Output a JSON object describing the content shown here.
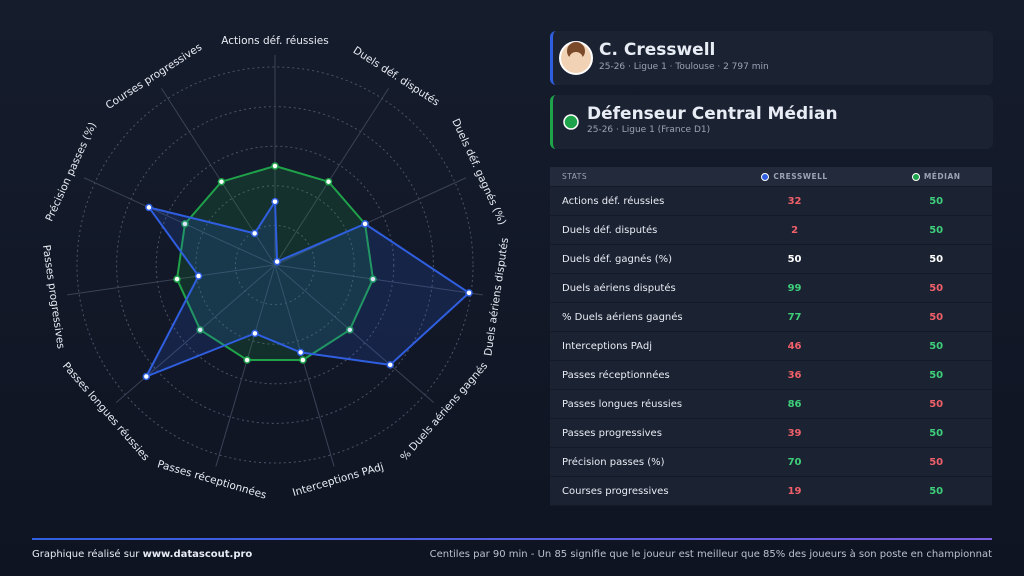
{
  "chart_data": {
    "type": "radar",
    "categories": [
      "Actions déf. réussies",
      "Duels déf. disputés",
      "Duels déf. gagnés (%)",
      "Duels aériens disputés",
      "% Duels aériens gagnés",
      "Interceptions PAdj",
      "Passes réceptionnées",
      "Passes longues réussies",
      "Passes progressives",
      "Précision passes (%)",
      "Courses progressives"
    ],
    "series": [
      {
        "name": "Cresswell",
        "color": "#2f5fe0",
        "values": [
          32,
          2,
          50,
          99,
          77,
          46,
          36,
          86,
          39,
          70,
          19
        ]
      },
      {
        "name": "Médian",
        "color": "#1fa34a",
        "values": [
          50,
          50,
          50,
          50,
          50,
          50,
          50,
          50,
          50,
          50,
          50
        ]
      }
    ],
    "rlim": [
      0,
      100
    ]
  },
  "player": {
    "name": "C. Cresswell",
    "details": "25-26 · Ligue 1 · Toulouse · 2 797 min"
  },
  "role": {
    "name": "Défenseur Central Médian",
    "details": "25-26 · Ligue 1 (France D1)"
  },
  "table": {
    "header": "STATS"
  },
  "footer": {
    "left": "Graphique réalisé sur ",
    "link": "www.datascout.pro",
    "right": "Centiles par 90 min - Un 85 signifie que le joueur est meilleur que 85% des joueurs à son poste en championnat"
  }
}
